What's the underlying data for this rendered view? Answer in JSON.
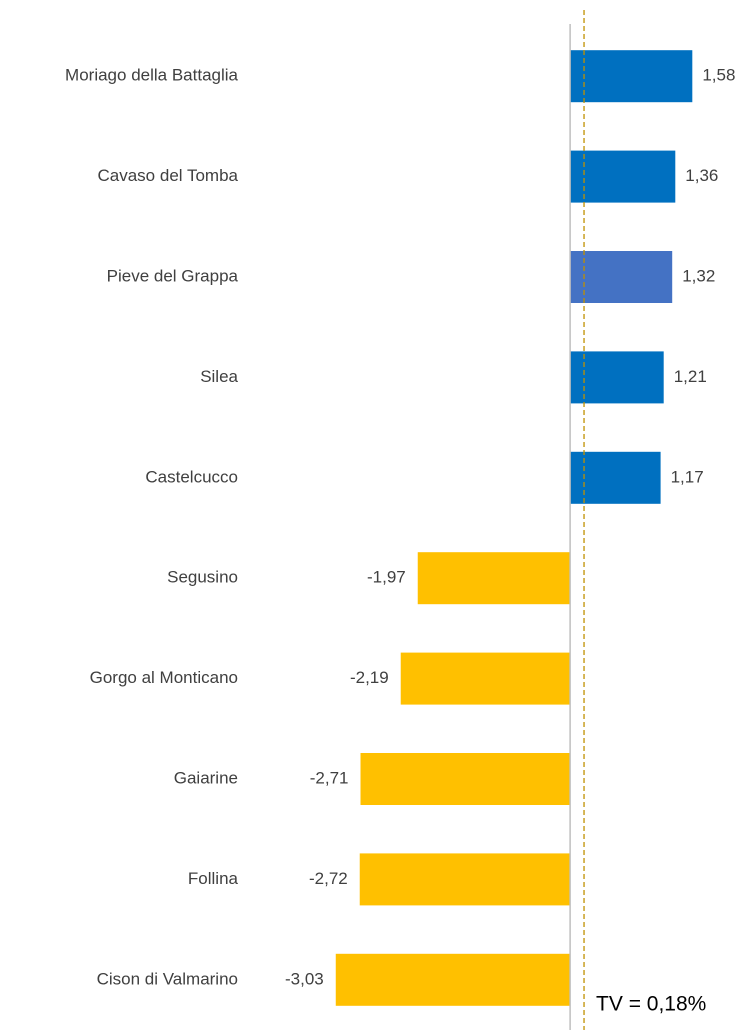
{
  "chart_data": {
    "type": "barh",
    "categories": [
      "Moriago della Battaglia",
      "Cavaso del Tomba",
      "Pieve del Grappa",
      "Silea",
      "Castelcucco",
      "Segusino",
      "Gorgo al Monticano",
      "Gaiarine",
      "Follina",
      "Cison di Valmarino"
    ],
    "values": [
      1.58,
      1.36,
      1.32,
      1.21,
      1.17,
      -1.97,
      -2.19,
      -2.71,
      -2.72,
      -3.03
    ],
    "value_labels": [
      "1,58",
      "1,36",
      "1,32",
      "1,21",
      "1,17",
      "-1,97",
      "-2,19",
      "-2,71",
      "-2,72",
      "-3,03"
    ],
    "colors": [
      "#0070c0",
      "#0070c0",
      "#4472c4",
      "#0070c0",
      "#0070c0",
      "#ffc000",
      "#ffc000",
      "#ffc000",
      "#ffc000",
      "#ffc000"
    ],
    "xlim": [
      -4.1,
      2.3
    ],
    "reference_line": {
      "value": 0.18,
      "label": "TV = 0,18%",
      "color": "#bf9000"
    }
  }
}
